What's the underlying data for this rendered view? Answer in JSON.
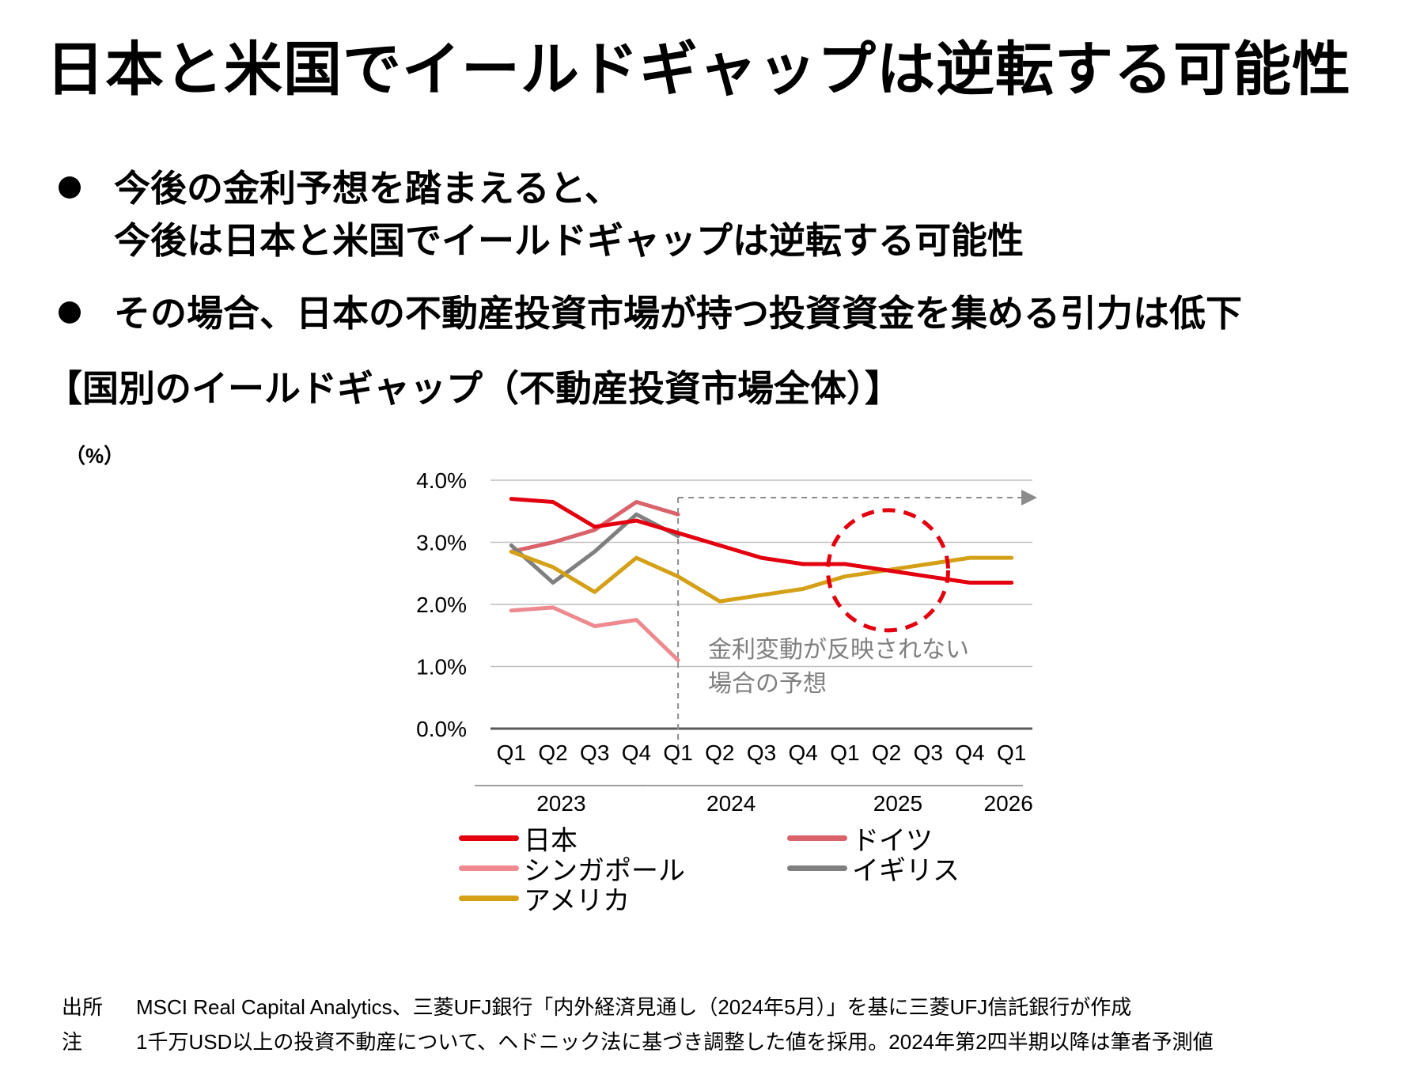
{
  "title": "日本と米国でイールドギャップは逆転する可能性",
  "bullets": {
    "b1_line1": "今後の金利予想を踏まえると、",
    "b1_line2": "今後は日本と米国でイールドギャップは逆転する可能性",
    "b2": "その場合、日本の不動産投資市場が持つ投資資金を集める引力は低下"
  },
  "section_title": "【国別のイールドギャップ（不動産投資市場全体）】",
  "unit_label": "（%）",
  "annotation": {
    "line1": "金利変動が反映されない",
    "line2": "場合の予想"
  },
  "legend": {
    "japan": "日本",
    "germany": "ドイツ",
    "singapore": "シンガポール",
    "uk": "イギリス",
    "usa": "アメリカ"
  },
  "colors": {
    "japan": "#e3000f",
    "germany": "#d9626b",
    "singapore": "#ee8a8f",
    "uk": "#7f7f7f",
    "usa": "#d4a017",
    "grid": "#bfbfbf",
    "forecast": "#8c8c8c"
  },
  "footer": {
    "source_label": "出所",
    "source_text": "MSCI Real Capital Analytics、三菱UFJ銀行「内外経済見通し（2024年5月）」を基に三菱UFJ信託銀行が作成",
    "note_label": "注",
    "note_text": "1千万USD以上の投資不動産について、ヘドニック法に基づき調整した値を採用。2024年第2四半期以降は筆者予測値"
  },
  "chart_data": {
    "type": "line",
    "categories": [
      "Q1",
      "Q2",
      "Q3",
      "Q4",
      "Q1",
      "Q2",
      "Q3",
      "Q4",
      "Q1",
      "Q2",
      "Q3",
      "Q4",
      "Q1"
    ],
    "years": [
      {
        "label": "2023",
        "start": 0,
        "end": 3
      },
      {
        "label": "2024",
        "start": 4,
        "end": 7
      },
      {
        "label": "2025",
        "start": 8,
        "end": 11
      },
      {
        "label": "2026",
        "start": 12,
        "end": 12
      }
    ],
    "yticks": [
      "0.0%",
      "1.0%",
      "2.0%",
      "3.0%",
      "4.0%"
    ],
    "ylim": [
      0,
      4
    ],
    "forecast_start_index": 4,
    "series": [
      {
        "key": "japan",
        "name": "日本",
        "values": [
          3.7,
          3.65,
          3.25,
          3.35,
          3.15,
          2.95,
          2.75,
          2.65,
          2.65,
          2.55,
          2.45,
          2.35,
          2.35
        ]
      },
      {
        "key": "germany",
        "name": "ドイツ",
        "values": [
          2.85,
          3.0,
          3.2,
          3.65,
          3.45,
          null,
          null,
          null,
          null,
          null,
          null,
          null,
          null
        ]
      },
      {
        "key": "singapore",
        "name": "シンガポール",
        "values": [
          1.9,
          1.95,
          1.65,
          1.75,
          1.1,
          null,
          null,
          null,
          null,
          null,
          null,
          null,
          null
        ]
      },
      {
        "key": "uk",
        "name": "イギリス",
        "values": [
          2.95,
          2.35,
          2.85,
          3.45,
          3.1,
          null,
          null,
          null,
          null,
          null,
          null,
          null,
          null
        ]
      },
      {
        "key": "usa",
        "name": "アメリカ",
        "values": [
          2.85,
          2.6,
          2.2,
          2.75,
          2.45,
          2.05,
          2.15,
          2.25,
          2.45,
          2.55,
          2.65,
          2.75,
          2.75
        ]
      }
    ]
  }
}
